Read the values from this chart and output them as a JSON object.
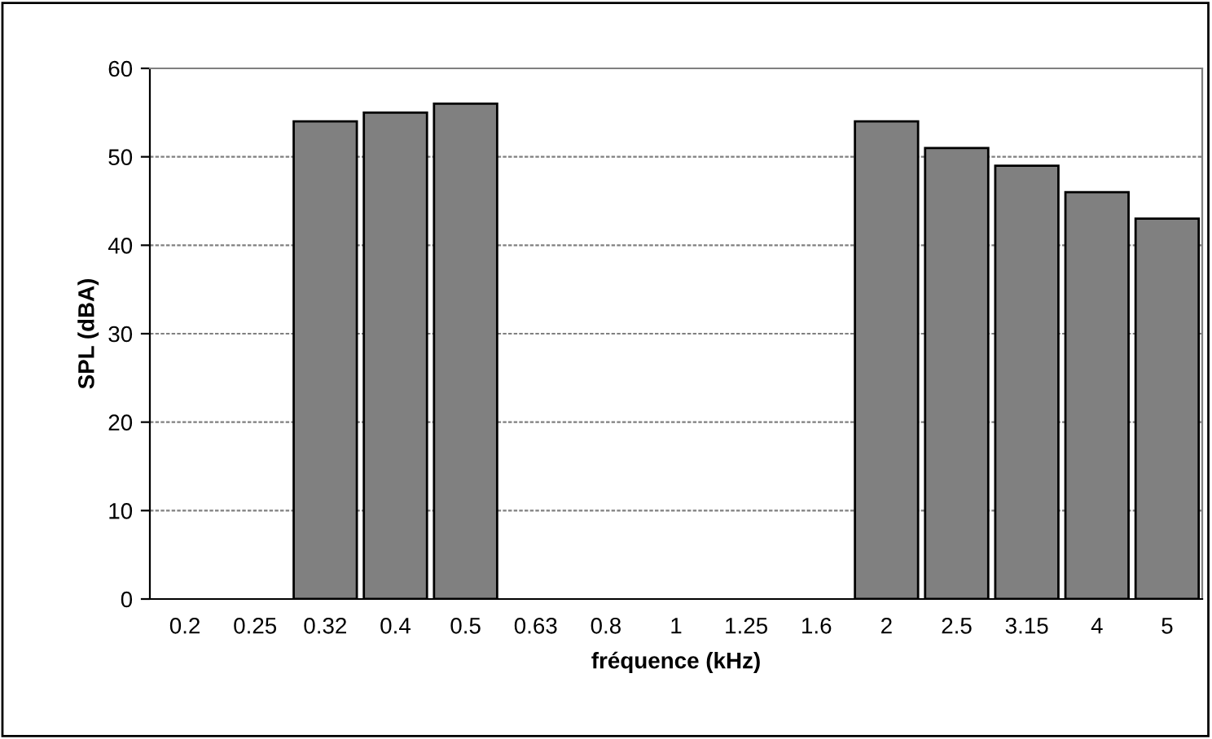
{
  "chart_data": {
    "type": "bar",
    "xlabel": "fréquence (kHz)",
    "ylabel": "SPL (dBA)",
    "categories": [
      "0.2",
      "0.25",
      "0.32",
      "0.4",
      "0.5",
      "0.63",
      "0.8",
      "1",
      "1.25",
      "1.6",
      "2",
      "2.5",
      "3.15",
      "4",
      "5"
    ],
    "values": [
      null,
      null,
      54,
      55,
      56,
      null,
      null,
      null,
      null,
      null,
      54,
      51,
      49,
      46,
      43
    ],
    "color": "#808080",
    "ylim": [
      0,
      60
    ],
    "yticks": [
      0,
      10,
      20,
      30,
      40,
      50,
      60
    ],
    "grid": "y",
    "legend": false
  }
}
